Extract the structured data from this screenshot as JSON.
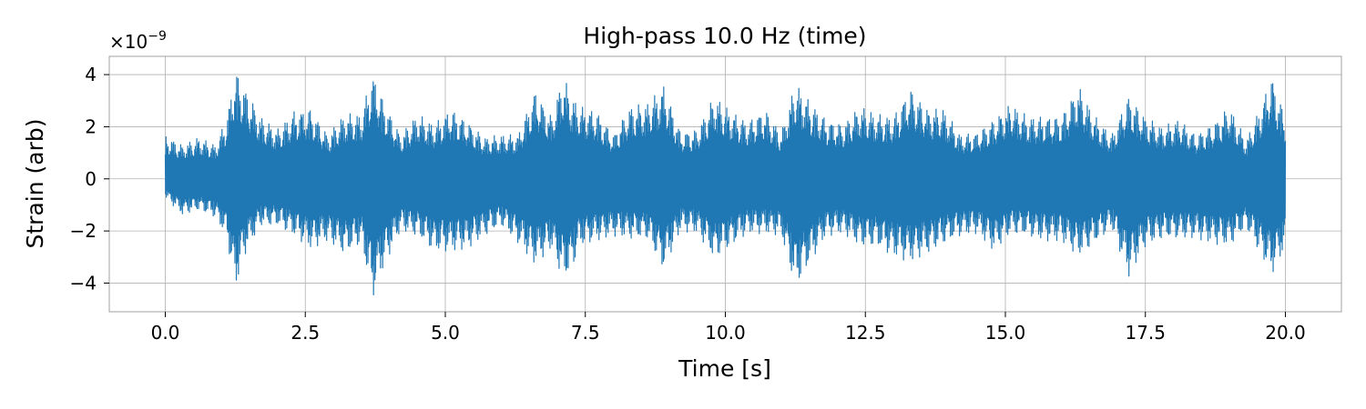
{
  "chart_data": {
    "type": "line",
    "title": "High-pass 10.0 Hz (time)",
    "xlabel": "Time [s]",
    "ylabel": "Strain (arb)",
    "y_offset_label": "×10",
    "y_offset_exponent": "−9",
    "xlim": [
      -1.0,
      21.0
    ],
    "ylim": [
      -5.1,
      4.7
    ],
    "x_ticks": [
      0.0,
      2.5,
      5.0,
      7.5,
      10.0,
      12.5,
      15.0,
      17.5,
      20.0
    ],
    "x_tick_labels": [
      "0.0",
      "2.5",
      "5.0",
      "7.5",
      "10.0",
      "12.5",
      "15.0",
      "17.5",
      "20.0"
    ],
    "y_ticks": [
      -4,
      -2,
      0,
      2,
      4
    ],
    "y_tick_labels": [
      "−4",
      "−2",
      "0",
      "2",
      "4"
    ],
    "grid": true,
    "line_color": "#1f77b4",
    "series": [
      {
        "x": [
          0.0,
          0.3,
          0.6,
          0.9,
          1.1,
          1.25,
          1.4,
          1.7,
          2.0,
          2.3,
          2.6,
          2.9,
          3.2,
          3.5,
          3.7,
          3.9,
          4.2,
          4.5,
          4.8,
          5.1,
          5.4,
          5.7,
          6.0,
          6.3,
          6.6,
          6.9,
          7.1,
          7.25,
          7.4,
          7.7,
          8.0,
          8.3,
          8.6,
          8.9,
          9.2,
          9.5,
          9.8,
          10.1,
          10.4,
          10.7,
          11.0,
          11.25,
          11.5,
          11.8,
          12.1,
          12.4,
          12.7,
          13.0,
          13.3,
          13.6,
          13.9,
          14.2,
          14.5,
          14.8,
          15.1,
          15.4,
          15.7,
          16.0,
          16.3,
          16.6,
          16.9,
          17.2,
          17.5,
          17.8,
          18.1,
          18.4,
          18.7,
          19.0,
          19.3,
          19.6,
          19.75,
          20.0
        ],
        "upper": [
          1.7,
          1.3,
          1.6,
          1.3,
          2.4,
          4.2,
          3.6,
          2.4,
          1.9,
          2.6,
          2.7,
          1.7,
          2.5,
          2.5,
          4.1,
          3.0,
          1.7,
          2.5,
          2.1,
          2.7,
          2.2,
          1.6,
          1.7,
          1.7,
          3.4,
          2.4,
          4.0,
          3.2,
          2.8,
          2.6,
          1.7,
          2.8,
          2.9,
          3.6,
          1.8,
          1.9,
          3.2,
          2.6,
          2.2,
          2.7,
          1.8,
          3.7,
          3.0,
          2.3,
          2.1,
          2.8,
          2.5,
          2.4,
          3.5,
          2.7,
          2.7,
          1.7,
          1.8,
          2.3,
          2.9,
          2.4,
          2.4,
          2.4,
          3.6,
          2.4,
          1.7,
          3.2,
          2.4,
          2.0,
          2.3,
          1.7,
          2.1,
          2.8,
          1.5,
          3.0,
          4.0,
          2.4
        ],
        "lower": [
          -0.7,
          -1.4,
          -1.2,
          -1.5,
          -2.3,
          -4.3,
          -3.0,
          -1.8,
          -1.8,
          -2.2,
          -2.7,
          -2.4,
          -2.9,
          -2.5,
          -4.6,
          -3.4,
          -2.0,
          -2.2,
          -2.8,
          -2.8,
          -2.7,
          -2.2,
          -1.8,
          -2.5,
          -3.3,
          -2.7,
          -3.9,
          -3.6,
          -2.6,
          -2.4,
          -2.2,
          -2.3,
          -2.3,
          -3.5,
          -2.0,
          -2.1,
          -3.1,
          -2.6,
          -2.1,
          -2.1,
          -2.2,
          -4.2,
          -3.3,
          -2.2,
          -2.1,
          -2.6,
          -2.6,
          -3.0,
          -3.2,
          -2.9,
          -2.5,
          -2.2,
          -2.1,
          -2.8,
          -2.1,
          -2.2,
          -2.4,
          -2.4,
          -3.0,
          -2.5,
          -1.9,
          -3.8,
          -2.6,
          -2.3,
          -2.3,
          -2.3,
          -2.5,
          -2.6,
          -1.9,
          -3.1,
          -3.7,
          -2.7
        ]
      }
    ]
  }
}
